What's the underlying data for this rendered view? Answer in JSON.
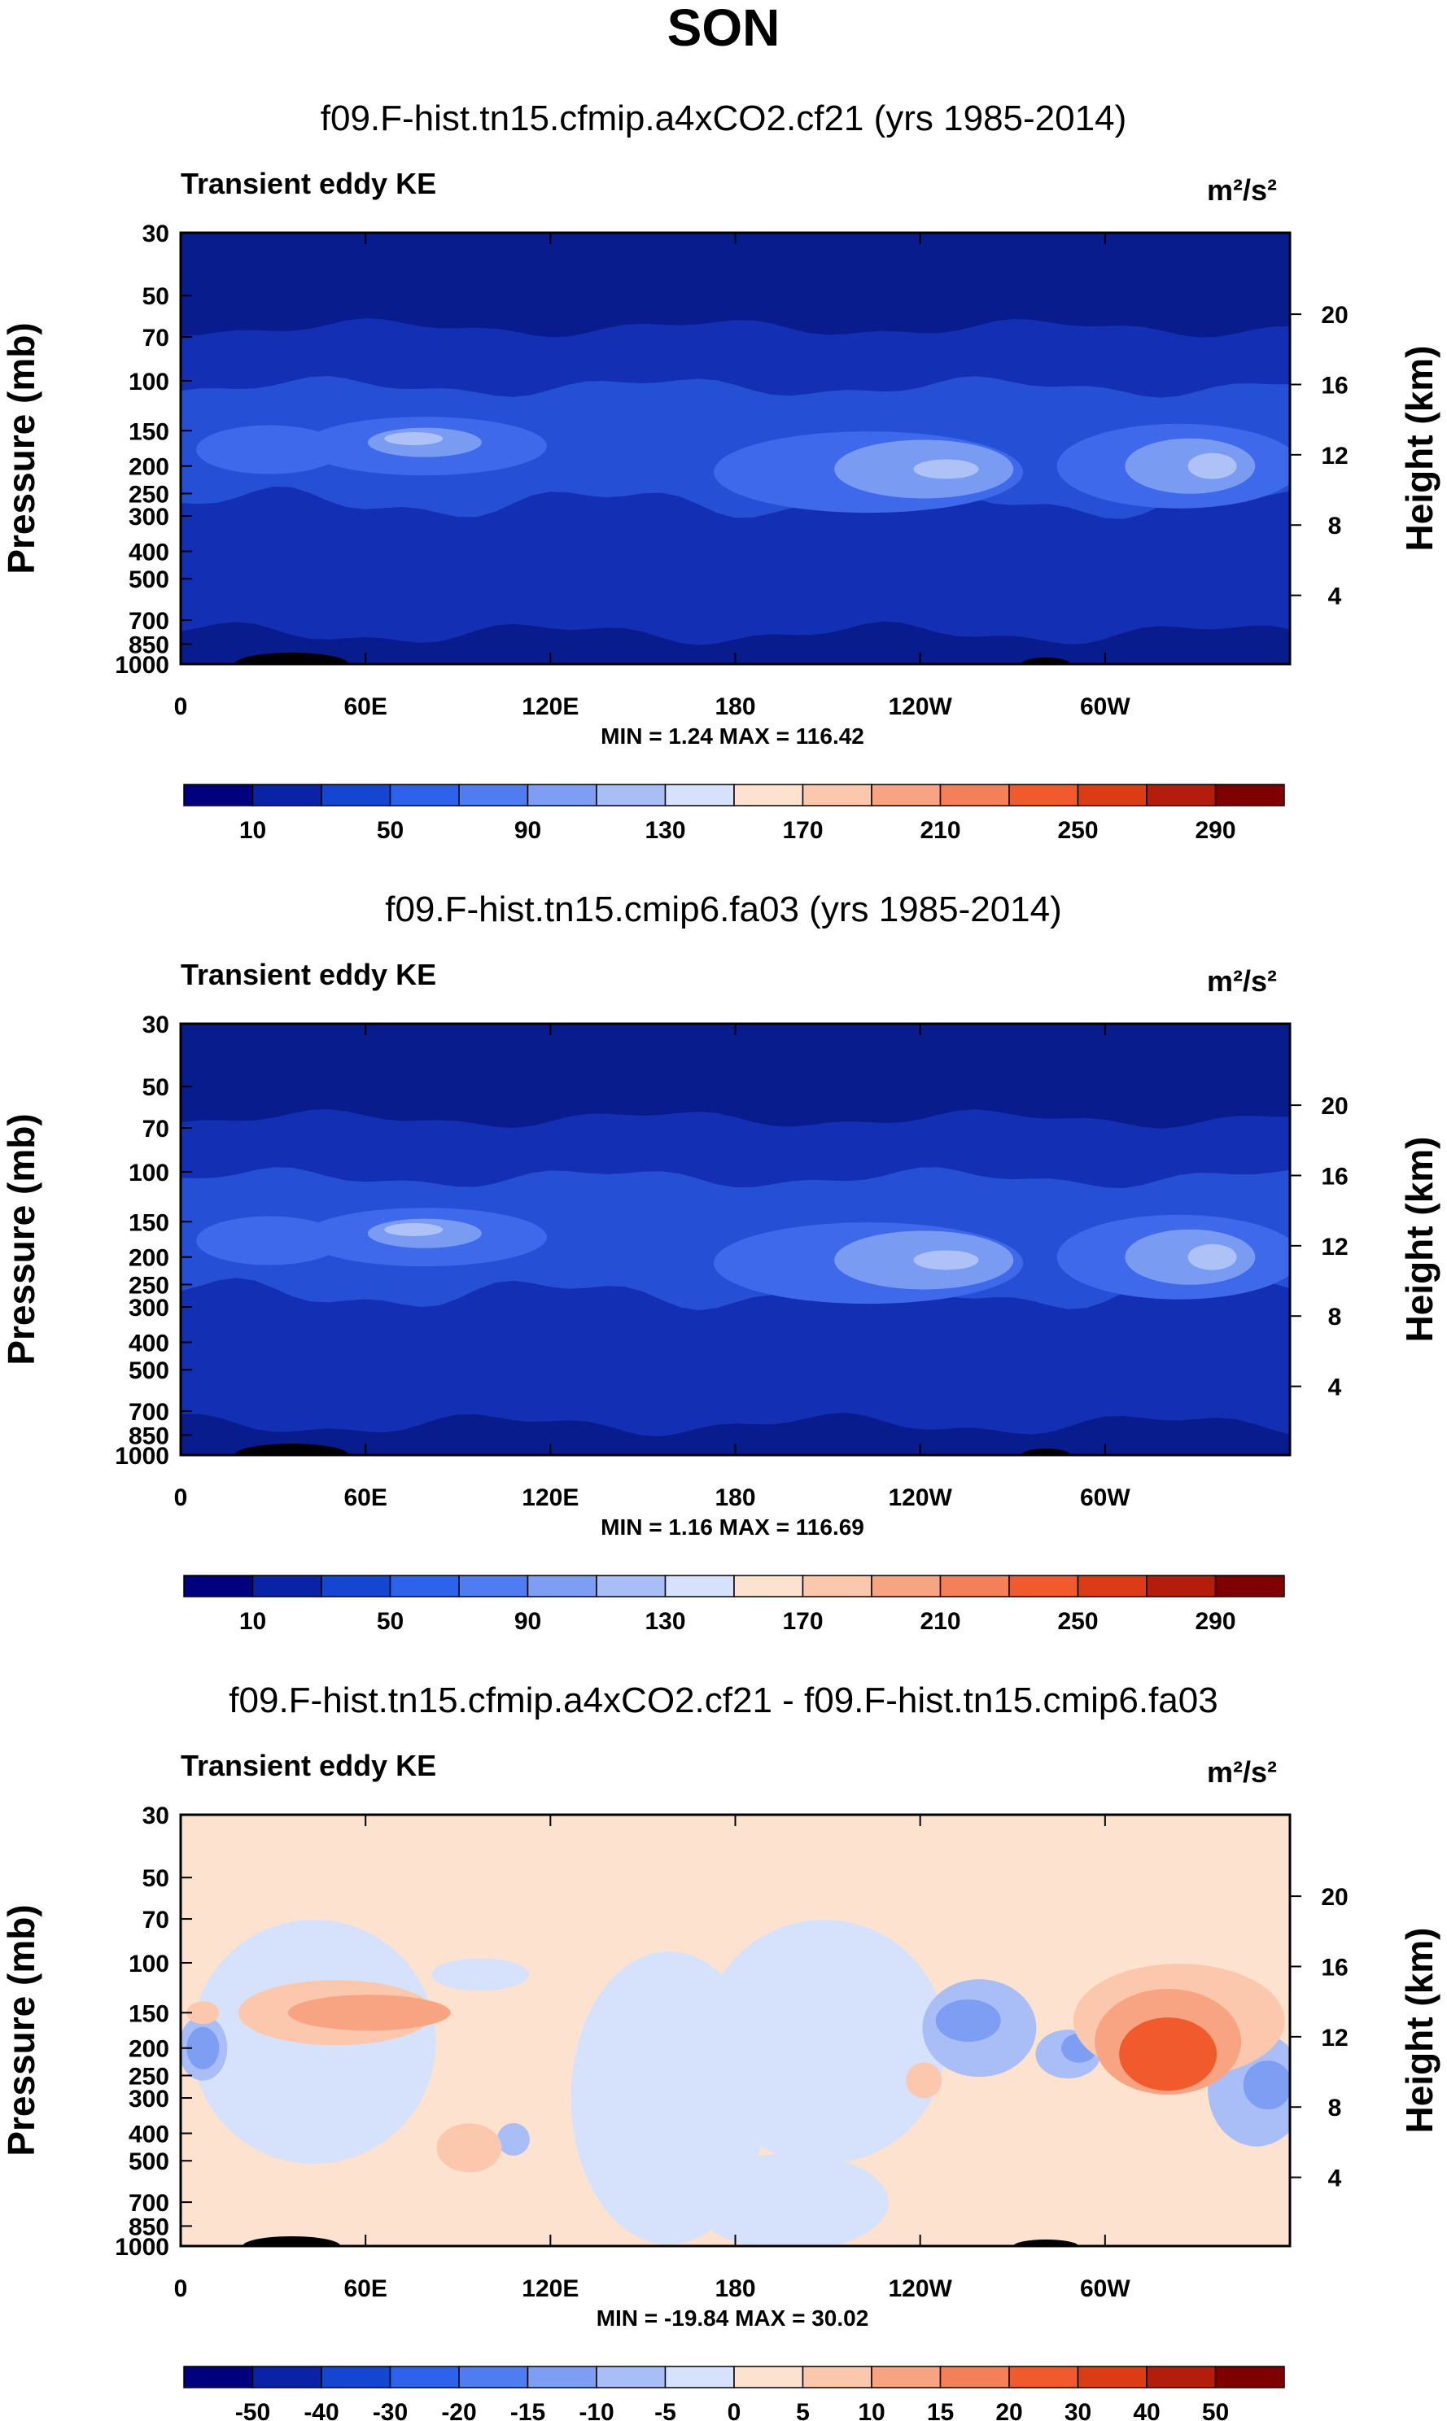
{
  "page_title": "SON",
  "chart_data": [
    {
      "type": "heatmap",
      "title": "f09.F-hist.tn15.cfmip.a4xCO2.cf21 (yrs 1985-2014)",
      "left_label": "Transient eddy KE",
      "units": "m²/s²",
      "ylabel": "Pressure (mb)",
      "y2label": "Height (km)",
      "y_ticks": [
        "30",
        "50",
        "70",
        "100",
        "150",
        "200",
        "250",
        "300",
        "400",
        "500",
        "700",
        "850",
        "1000"
      ],
      "y2_ticks": [
        "20",
        "16",
        "12",
        "8",
        "4"
      ],
      "x_ticks": [
        "0",
        "60E",
        "120E",
        "180",
        "120W",
        "60W"
      ],
      "stats": "MIN =   1.24   MAX = 116.42",
      "colorbar_labels": [
        "10",
        "50",
        "90",
        "130",
        "170",
        "210",
        "250",
        "290"
      ],
      "colorbar_colors": [
        "#00007e",
        "#0a23a6",
        "#1446d2",
        "#2f62ea",
        "#4f7cf0",
        "#7e9ef4",
        "#a9bdf7",
        "#d6e2fb",
        "#fde2cf",
        "#fbc8ad",
        "#f8a482",
        "#f4805a",
        "#f05a2d",
        "#dc3c14",
        "#b21e0b",
        "#7e0000"
      ],
      "field_colors": [
        "#081c8e",
        "#132fb3",
        "#2550d6",
        "#3e69ea",
        "#7a9bf2",
        "#aec2f7"
      ]
    },
    {
      "type": "heatmap",
      "title": "f09.F-hist.tn15.cmip6.fa03 (yrs 1985-2014)",
      "left_label": "Transient eddy KE",
      "units": "m²/s²",
      "ylabel": "Pressure (mb)",
      "y2label": "Height (km)",
      "y_ticks": [
        "30",
        "50",
        "70",
        "100",
        "150",
        "200",
        "250",
        "300",
        "400",
        "500",
        "700",
        "850",
        "1000"
      ],
      "y2_ticks": [
        "20",
        "16",
        "12",
        "8",
        "4"
      ],
      "x_ticks": [
        "0",
        "60E",
        "120E",
        "180",
        "120W",
        "60W"
      ],
      "stats": "MIN =   1.16   MAX = 116.69",
      "colorbar_labels": [
        "10",
        "50",
        "90",
        "130",
        "170",
        "210",
        "250",
        "290"
      ],
      "colorbar_colors": [
        "#00007e",
        "#0a23a6",
        "#1446d2",
        "#2f62ea",
        "#4f7cf0",
        "#7e9ef4",
        "#a9bdf7",
        "#d6e2fb",
        "#fde2cf",
        "#fbc8ad",
        "#f8a482",
        "#f4805a",
        "#f05a2d",
        "#dc3c14",
        "#b21e0b",
        "#7e0000"
      ],
      "field_colors": [
        "#081c8e",
        "#132fb3",
        "#2550d6",
        "#3e69ea",
        "#7a9bf2",
        "#aec2f7"
      ]
    },
    {
      "type": "heatmap",
      "title": "f09.F-hist.tn15.cfmip.a4xCO2.cf21 - f09.F-hist.tn15.cmip6.fa03",
      "left_label": "Transient eddy KE",
      "units": "m²/s²",
      "ylabel": "Pressure (mb)",
      "y2label": "Height (km)",
      "y_ticks": [
        "30",
        "50",
        "70",
        "100",
        "150",
        "200",
        "250",
        "300",
        "400",
        "500",
        "700",
        "850",
        "1000"
      ],
      "y2_ticks": [
        "20",
        "16",
        "12",
        "8",
        "4"
      ],
      "x_ticks": [
        "0",
        "60E",
        "120E",
        "180",
        "120W",
        "60W"
      ],
      "stats": "MIN = -19.84   MAX =  30.02",
      "colorbar_labels": [
        "-50",
        "-40",
        "-30",
        "-20",
        "-15",
        "-10",
        "-5",
        "0",
        "5",
        "10",
        "15",
        "20",
        "30",
        "40",
        "50"
      ],
      "colorbar_colors": [
        "#00007e",
        "#0a23a6",
        "#1446d2",
        "#2f62ea",
        "#4f7cf0",
        "#7e9ef4",
        "#a9bdf7",
        "#d6e2fb",
        "#fde2cf",
        "#fbc8ad",
        "#f8a482",
        "#f4805a",
        "#f05a2d",
        "#dc3c14",
        "#b21e0b",
        "#7e0000"
      ],
      "field_colors": [
        "#fde2cf",
        "#d6e2fb",
        "#a9bdf7",
        "#7e9ef4",
        "#fbc8ad",
        "#f8a482",
        "#f05a2d",
        "#3a5fe0"
      ]
    }
  ]
}
